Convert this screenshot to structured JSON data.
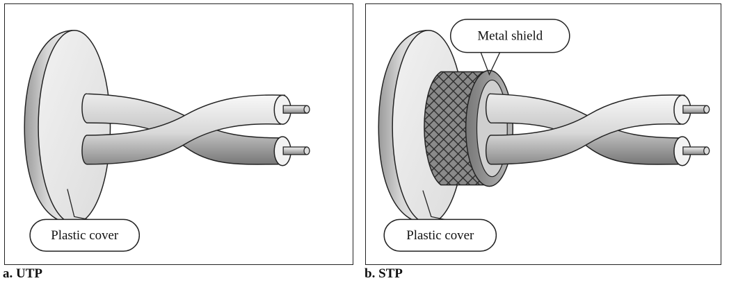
{
  "panels": [
    {
      "caption": "a. UTP",
      "callouts": {
        "plastic_cover": "Plastic cover"
      }
    },
    {
      "caption": "b. STP",
      "callouts": {
        "plastic_cover": "Plastic cover",
        "metal_shield": "Metal shield"
      }
    }
  ]
}
